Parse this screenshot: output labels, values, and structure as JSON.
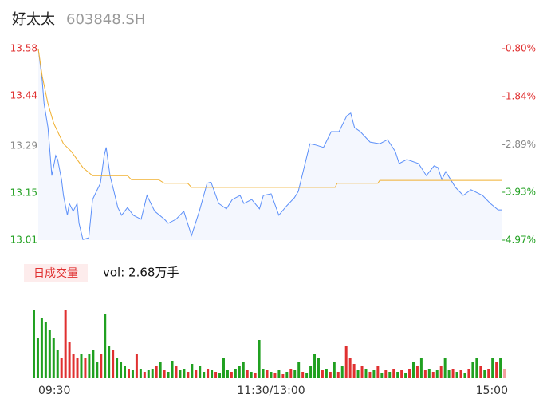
{
  "chart_data": [
    {
      "type": "line",
      "title": "好太太",
      "subtitle": "603848.SH",
      "xlim": [
        0,
        240
      ],
      "xticks": [
        {
          "value": 0,
          "label": "09:30"
        },
        {
          "value": 120,
          "label": "11:30/13:00"
        },
        {
          "value": 240,
          "label": "15:00"
        }
      ],
      "ylim": [
        13.01,
        13.58
      ],
      "yticks": [
        13.58,
        13.44,
        13.29,
        13.15,
        13.01
      ],
      "y2lim": [
        -4.97,
        -0.8
      ],
      "y2ticks": [
        {
          "value": -0.8,
          "label": "-0.80%"
        },
        {
          "value": -1.84,
          "label": "-1.84%"
        },
        {
          "value": -2.89,
          "label": "-2.89%"
        },
        {
          "value": -3.93,
          "label": "-3.93%"
        },
        {
          "value": -4.97,
          "label": "-4.97%"
        }
      ],
      "tick_colors": [
        "#e03030",
        "#e03030",
        "#888888",
        "#20a020",
        "#20a020"
      ],
      "series": [
        {
          "color": "#5b8ff9",
          "x": [
            0,
            2,
            3,
            5,
            6,
            7,
            9,
            10,
            12,
            13,
            15,
            16,
            18,
            20,
            21,
            23,
            26,
            28,
            30,
            32,
            34,
            35,
            37,
            39,
            41,
            43,
            46,
            49,
            53,
            56,
            60,
            65,
            67,
            71,
            75,
            79,
            83,
            87,
            89,
            93,
            97,
            100,
            104,
            106,
            110,
            114,
            116,
            120,
            124,
            128,
            132,
            134,
            136,
            140,
            143,
            147,
            151,
            155,
            159,
            161,
            163,
            166,
            171,
            176,
            180,
            184,
            186,
            190,
            196,
            200,
            204,
            206,
            208,
            210,
            215,
            219,
            223,
            229,
            233,
            237,
            239
          ],
          "values": [
            13.58,
            13.487,
            13.416,
            13.345,
            13.274,
            13.202,
            13.262,
            13.25,
            13.19,
            13.143,
            13.084,
            13.119,
            13.096,
            13.119,
            13.06,
            13.012,
            13.017,
            13.131,
            13.155,
            13.179,
            13.262,
            13.286,
            13.202,
            13.155,
            13.107,
            13.084,
            13.107,
            13.084,
            13.072,
            13.143,
            13.096,
            13.072,
            13.06,
            13.072,
            13.096,
            13.024,
            13.096,
            13.179,
            13.183,
            13.119,
            13.103,
            13.131,
            13.143,
            13.119,
            13.131,
            13.103,
            13.143,
            13.148,
            13.084,
            13.112,
            13.136,
            13.155,
            13.202,
            13.297,
            13.293,
            13.286,
            13.333,
            13.333,
            13.38,
            13.388,
            13.345,
            13.333,
            13.302,
            13.297,
            13.309,
            13.274,
            13.238,
            13.25,
            13.238,
            13.202,
            13.231,
            13.226,
            13.19,
            13.214,
            13.167,
            13.143,
            13.16,
            13.143,
            13.119,
            13.1,
            13.1
          ]
        },
        {
          "color": "#f0b030",
          "x": [
            0,
            2,
            5,
            8,
            13,
            17,
            23,
            28,
            46,
            48,
            62,
            65,
            77,
            79,
            153,
            154,
            175,
            176,
            239
          ],
          "values": [
            13.58,
            13.499,
            13.416,
            13.357,
            13.297,
            13.274,
            13.226,
            13.202,
            13.202,
            13.19,
            13.19,
            13.179,
            13.179,
            13.167,
            13.167,
            13.179,
            13.179,
            13.188,
            13.188
          ]
        }
      ]
    },
    {
      "type": "bar",
      "label": "日成交量",
      "summary": "vol: 2.68万手",
      "ylim": [
        0,
        88
      ],
      "values": [
        86,
        50,
        75,
        70,
        60,
        50,
        35,
        25,
        86,
        45,
        30,
        25,
        30,
        25,
        30,
        35,
        20,
        30,
        80,
        40,
        35,
        25,
        20,
        15,
        12,
        10,
        30,
        12,
        8,
        10,
        12,
        15,
        20,
        10,
        8,
        22,
        15,
        10,
        12,
        8,
        18,
        10,
        15,
        8,
        12,
        10,
        8,
        6,
        25,
        10,
        8,
        12,
        15,
        20,
        10,
        8,
        6,
        48,
        12,
        10,
        8,
        6,
        10,
        5,
        8,
        12,
        10,
        20,
        8,
        6,
        15,
        30,
        25,
        10,
        12,
        8,
        20,
        8,
        15,
        40,
        25,
        18,
        10,
        15,
        12,
        8,
        10,
        15,
        6,
        10,
        8,
        12,
        8,
        10,
        6,
        12,
        20,
        15,
        25,
        10,
        12,
        8,
        10,
        15,
        25,
        10,
        12,
        8,
        10,
        6,
        12,
        20,
        25,
        15,
        10,
        12,
        25,
        20,
        25,
        12
      ],
      "colors": [
        "#20a020",
        "#20a020",
        "#20a020",
        "#20a020",
        "#20a020",
        "#20a020",
        "#20a020",
        "#e03030",
        "#e03030",
        "#e03030",
        "#e03030",
        "#e03030",
        "#20a020",
        "#e03030",
        "#20a020",
        "#20a020",
        "#20a020",
        "#e03030",
        "#20a020",
        "#20a020",
        "#e03030",
        "#20a020",
        "#20a020",
        "#20a020",
        "#e03030",
        "#20a020",
        "#e03030",
        "#20a020",
        "#e03030",
        "#20a020",
        "#20a020",
        "#e03030",
        "#20a020",
        "#e03030",
        "#20a020",
        "#20a020",
        "#e03030",
        "#20a020",
        "#20a020",
        "#e03030",
        "#20a020",
        "#e03030",
        "#20a020",
        "#20a020",
        "#e03030",
        "#20a020",
        "#e03030",
        "#20a020",
        "#20a020",
        "#20a020",
        "#e03030",
        "#20a020",
        "#20a020",
        "#20a020",
        "#e03030",
        "#20a020",
        "#e03030",
        "#20a020",
        "#20a020",
        "#e03030",
        "#20a020",
        "#e03030",
        "#20a020",
        "#e03030",
        "#20a020",
        "#e03030",
        "#20a020",
        "#20a020",
        "#e03030",
        "#20a020",
        "#20a020",
        "#20a020",
        "#20a020",
        "#e03030",
        "#20a020",
        "#e03030",
        "#20a020",
        "#e03030",
        "#20a020",
        "#e03030",
        "#e03030",
        "#e03030",
        "#20a020",
        "#e03030",
        "#20a020",
        "#e03030",
        "#20a020",
        "#e03030",
        "#20a020",
        "#e03030",
        "#20a020",
        "#e03030",
        "#20a020",
        "#e03030",
        "#20a020",
        "#e03030",
        "#20a020",
        "#e03030",
        "#20a020",
        "#e03030",
        "#20a020",
        "#e03030",
        "#20a020",
        "#e03030",
        "#20a020",
        "#20a020",
        "#e03030",
        "#20a020",
        "#e03030",
        "#20a020",
        "#e03030",
        "#20a020",
        "#20a020",
        "#e03030",
        "#20a020",
        "#e03030",
        "#20a020",
        "#e03030",
        "#20a020",
        "#f4a0a0"
      ]
    }
  ]
}
